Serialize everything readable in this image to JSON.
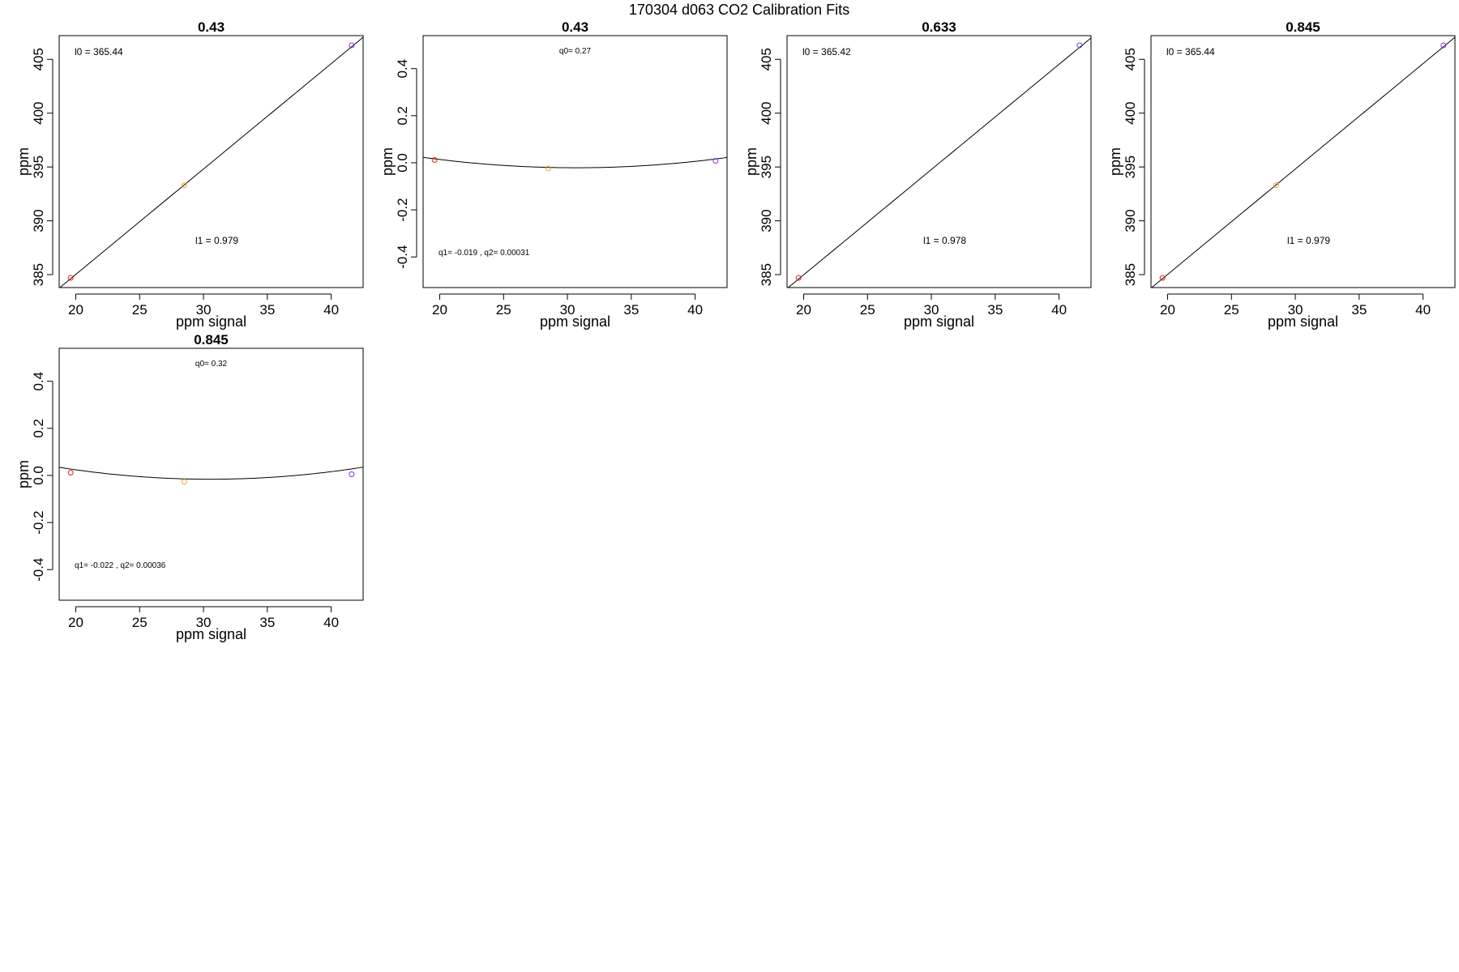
{
  "figure": {
    "title": "170304   d063   CO2 Calibration Fits"
  },
  "chart_data": [
    {
      "type": "scatter",
      "fit": "linear",
      "title": "0.43",
      "xlabel": "ppm signal",
      "ylabel": "ppm",
      "xlim": [
        18.7,
        42.5
      ],
      "ylim": [
        383.8,
        407.2
      ],
      "xticks": [
        20,
        25,
        30,
        35,
        40
      ],
      "yticks": [
        385,
        390,
        395,
        400,
        405
      ],
      "points": [
        {
          "x": 19.6,
          "y": 384.7,
          "color": "#e0201b"
        },
        {
          "x": 28.5,
          "y": 393.3,
          "color": "#f0a020"
        },
        {
          "x": 41.6,
          "y": 406.3,
          "color": "#8a2be2"
        }
      ],
      "coefficients": {
        "l0": 365.44,
        "l1": 0.979
      },
      "annotations": [
        {
          "text": "l0 =  365.44",
          "pos": "top-left",
          "size": "normal"
        },
        {
          "text": "l1 =  0.979",
          "pos": "lower-center",
          "size": "normal"
        }
      ]
    },
    {
      "type": "scatter",
      "fit": "quadratic",
      "title": "0.43",
      "xlabel": "ppm signal",
      "ylabel": "ppm",
      "xlim": [
        18.7,
        42.5
      ],
      "ylim": [
        -0.53,
        0.54
      ],
      "xticks": [
        20,
        25,
        30,
        35,
        40
      ],
      "yticks": [
        -0.4,
        -0.2,
        0.0,
        0.2,
        0.4
      ],
      "ytick_labels": [
        "-0.4",
        "-0.2",
        "0.0",
        "0.2",
        "0.4"
      ],
      "points": [
        {
          "x": 19.6,
          "y": 0.012,
          "color": "#e0201b"
        },
        {
          "x": 28.5,
          "y": -0.024,
          "color": "#f0a020"
        },
        {
          "x": 41.6,
          "y": 0.008,
          "color": "#8a2be2"
        }
      ],
      "coefficients": {
        "q0": 0.27,
        "q1": -0.019,
        "q2": 0.00031
      },
      "annotations": [
        {
          "text": "q0= 0.27",
          "pos": "top-center",
          "size": "small"
        },
        {
          "text": "q1= -0.019 , q2= 0.00031",
          "pos": "bottom-left",
          "size": "small"
        }
      ]
    },
    {
      "type": "scatter",
      "fit": "linear",
      "title": "0.633",
      "xlabel": "ppm signal",
      "ylabel": "ppm",
      "xlim": [
        18.7,
        42.5
      ],
      "ylim": [
        383.8,
        407.2
      ],
      "xticks": [
        20,
        25,
        30,
        35,
        40
      ],
      "yticks": [
        385,
        390,
        395,
        400,
        405
      ],
      "points": [
        {
          "x": 19.6,
          "y": 384.7,
          "color": "#e0201b"
        },
        {
          "x": 41.6,
          "y": 406.3,
          "color": "#6a3fd8"
        }
      ],
      "coefficients": {
        "l0": 365.42,
        "l1": 0.978
      },
      "annotations": [
        {
          "text": "l0 =  365.42",
          "pos": "top-left",
          "size": "normal"
        },
        {
          "text": "l1 =  0.978",
          "pos": "lower-center",
          "size": "normal"
        }
      ]
    },
    {
      "type": "scatter",
      "fit": "linear",
      "title": "0.845",
      "xlabel": "ppm signal",
      "ylabel": "ppm",
      "xlim": [
        18.7,
        42.5
      ],
      "ylim": [
        383.8,
        407.2
      ],
      "xticks": [
        20,
        25,
        30,
        35,
        40
      ],
      "yticks": [
        385,
        390,
        395,
        400,
        405
      ],
      "points": [
        {
          "x": 19.6,
          "y": 384.7,
          "color": "#e0201b"
        },
        {
          "x": 28.5,
          "y": 393.3,
          "color": "#f0a020"
        },
        {
          "x": 41.6,
          "y": 406.3,
          "color": "#8a2be2"
        }
      ],
      "coefficients": {
        "l0": 365.44,
        "l1": 0.979
      },
      "annotations": [
        {
          "text": "l0 =  365.44",
          "pos": "top-left",
          "size": "normal"
        },
        {
          "text": "l1 =  0.979",
          "pos": "lower-center",
          "size": "normal"
        }
      ]
    },
    {
      "type": "scatter",
      "fit": "quadratic",
      "title": "0.845",
      "xlabel": "ppm signal",
      "ylabel": "ppm",
      "xlim": [
        18.7,
        42.5
      ],
      "ylim": [
        -0.53,
        0.54
      ],
      "xticks": [
        20,
        25,
        30,
        35,
        40
      ],
      "yticks": [
        -0.4,
        -0.2,
        0.0,
        0.2,
        0.4
      ],
      "ytick_labels": [
        "-0.4",
        "-0.2",
        "0.0",
        "0.2",
        "0.4"
      ],
      "points": [
        {
          "x": 19.6,
          "y": 0.012,
          "color": "#e0201b"
        },
        {
          "x": 28.5,
          "y": -0.027,
          "color": "#f0a020"
        },
        {
          "x": 41.6,
          "y": 0.005,
          "color": "#8a2be2"
        }
      ],
      "coefficients": {
        "q0": 0.32,
        "q1": -0.022,
        "q2": 0.00036
      },
      "annotations": [
        {
          "text": "q0= 0.32",
          "pos": "top-center",
          "size": "small"
        },
        {
          "text": "q1= -0.022 , q2= 0.00036",
          "pos": "bottom-left",
          "size": "small"
        }
      ]
    }
  ]
}
